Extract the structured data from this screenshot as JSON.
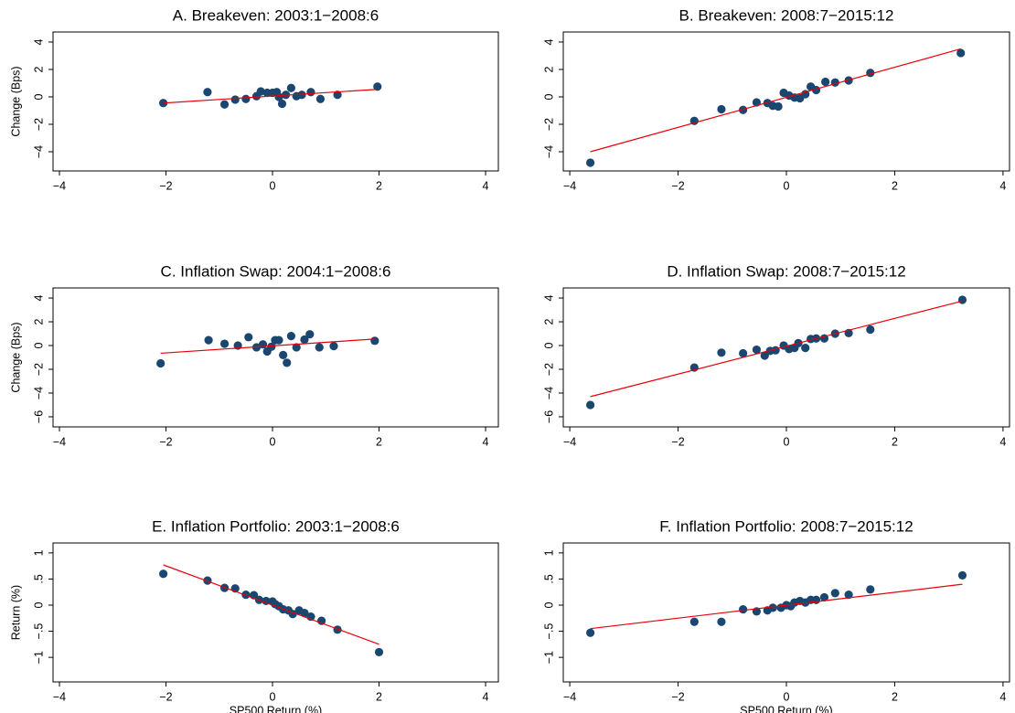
{
  "chart_data": [
    {
      "type": "scatter",
      "title": "A. Breakeven: 2003:1−2008:6",
      "ylabel": "Change (Bps)",
      "xlim": [
        -4.12,
        4.24
      ],
      "ylim": [
        -5.4,
        4.73
      ],
      "xticks": [
        {
          "value": -4,
          "label": "−4"
        },
        {
          "value": -2,
          "label": "−2"
        },
        0,
        2,
        4
      ],
      "yticks": [
        {
          "value": -4,
          "label": "−4"
        },
        {
          "value": -2,
          "label": "−2"
        },
        0,
        2,
        4
      ],
      "series": [
        {
          "type": "scatter",
          "color": "#1a476f",
          "x": [
            -2.05,
            -1.22,
            -0.9,
            -0.7,
            -0.5,
            -0.3,
            -0.22,
            -0.1,
            0,
            0.08,
            0.12,
            0.18,
            0.25,
            0.35,
            0.45,
            0.55,
            0.72,
            0.9,
            1.22,
            1.97
          ],
          "values": [
            -0.45,
            0.35,
            -0.55,
            -0.2,
            -0.15,
            0.05,
            0.4,
            0.3,
            0.3,
            0.35,
            0,
            -0.5,
            0.15,
            0.65,
            0.05,
            0.15,
            0.35,
            -0.15,
            0.15,
            0.75
          ]
        },
        {
          "type": "line",
          "color": "#e8000b",
          "x": [
            -2.05,
            1.97
          ],
          "values": [
            -0.45,
            0.55
          ]
        }
      ]
    },
    {
      "type": "scatter",
      "title": "B. Breakeven: 2008:7−2015:12",
      "xlim": [
        -4.12,
        4.12
      ],
      "ylim": [
        -5.4,
        4.73
      ],
      "xticks": [
        {
          "value": -4,
          "label": "−4"
        },
        {
          "value": -2,
          "label": "−2"
        },
        0,
        2,
        4
      ],
      "yticks": [
        {
          "value": -4,
          "label": "−4"
        },
        {
          "value": -2,
          "label": "−2"
        },
        0,
        2,
        4
      ],
      "series": [
        {
          "type": "scatter",
          "color": "#1a476f",
          "x": [
            -3.62,
            -1.7,
            -1.2,
            -0.8,
            -0.55,
            -0.35,
            -0.25,
            -0.15,
            -0.05,
            0.05,
            0.15,
            0.25,
            0.35,
            0.45,
            0.55,
            0.72,
            0.9,
            1.15,
            1.55,
            3.22
          ],
          "values": [
            -4.8,
            -1.75,
            -0.9,
            -0.95,
            -0.4,
            -0.45,
            -0.65,
            -0.7,
            0.3,
            0.1,
            -0.05,
            -0.1,
            0.2,
            0.75,
            0.5,
            1.1,
            1.05,
            1.2,
            1.75,
            3.2
          ]
        },
        {
          "type": "line",
          "color": "#e8000b",
          "x": [
            -3.62,
            3.22
          ],
          "values": [
            -4.0,
            3.5
          ]
        }
      ]
    },
    {
      "type": "scatter",
      "title": "C. Inflation Swap: 2004:1−2008:6",
      "ylabel": "Change (Bps)",
      "xlim": [
        -4.12,
        4.24
      ],
      "ylim": [
        -6.85,
        4.85
      ],
      "xticks": [
        {
          "value": -4,
          "label": "−4"
        },
        {
          "value": -2,
          "label": "−2"
        },
        0,
        2,
        4
      ],
      "yticks": [
        {
          "value": -6,
          "label": "−6"
        },
        {
          "value": -4,
          "label": "−4"
        },
        {
          "value": -2,
          "label": "−2"
        },
        0,
        2,
        4
      ],
      "series": [
        {
          "type": "scatter",
          "color": "#1a476f",
          "x": [
            -2.1,
            -1.2,
            -0.9,
            -0.65,
            -0.45,
            -0.3,
            -0.18,
            -0.1,
            -0.02,
            0.05,
            0.12,
            0.2,
            0.27,
            0.35,
            0.45,
            0.6,
            0.7,
            0.88,
            1.15,
            1.92
          ],
          "values": [
            -1.5,
            0.45,
            0.15,
            0,
            0.7,
            -0.15,
            0.1,
            -0.5,
            -0.1,
            0.45,
            0.45,
            -0.8,
            -1.45,
            0.8,
            -0.15,
            0.5,
            0.95,
            -0.15,
            -0.05,
            0.4
          ]
        },
        {
          "type": "line",
          "color": "#e8000b",
          "x": [
            -2.1,
            1.92
          ],
          "values": [
            -0.65,
            0.55
          ]
        }
      ]
    },
    {
      "type": "scatter",
      "title": "D. Inflation Swap: 2008:7−2015:12",
      "xlim": [
        -4.12,
        4.12
      ],
      "ylim": [
        -6.85,
        4.85
      ],
      "xticks": [
        {
          "value": -4,
          "label": "−4"
        },
        {
          "value": -2,
          "label": "−2"
        },
        0,
        2,
        4
      ],
      "yticks": [
        {
          "value": -6,
          "label": "−6"
        },
        {
          "value": -4,
          "label": "−4"
        },
        {
          "value": -2,
          "label": "−2"
        },
        0,
        2,
        4
      ],
      "series": [
        {
          "type": "scatter",
          "color": "#1a476f",
          "x": [
            -3.62,
            -1.7,
            -1.2,
            -0.8,
            -0.55,
            -0.4,
            -0.3,
            -0.2,
            -0.05,
            0.05,
            0.15,
            0.22,
            0.35,
            0.45,
            0.55,
            0.7,
            0.9,
            1.15,
            1.55,
            3.25
          ],
          "values": [
            -5.0,
            -1.85,
            -0.6,
            -0.65,
            -0.35,
            -0.85,
            -0.45,
            -0.4,
            0,
            -0.3,
            -0.2,
            0.2,
            -0.2,
            0.55,
            0.6,
            0.6,
            1.0,
            1.05,
            1.35,
            3.85
          ]
        },
        {
          "type": "line",
          "color": "#e8000b",
          "x": [
            -3.62,
            3.25
          ],
          "values": [
            -4.3,
            3.75
          ]
        }
      ]
    },
    {
      "type": "scatter",
      "title": "E. Inflation Portfolio: 2003:1−2008:6",
      "ylabel": "Return (%)",
      "xlabel": "SP500 Return (%)",
      "xlim": [
        -4.12,
        4.24
      ],
      "ylim": [
        -1.47,
        1.19
      ],
      "xticks": [
        {
          "value": -4,
          "label": "−4"
        },
        {
          "value": -2,
          "label": "−2"
        },
        0,
        2,
        4
      ],
      "yticks": [
        {
          "value": -1,
          "label": "−1"
        },
        {
          "value": -0.5,
          "label": "−.5"
        },
        0,
        {
          "value": 0.5,
          "label": ".5"
        },
        1
      ],
      "series": [
        {
          "type": "scatter",
          "color": "#1a476f",
          "x": [
            -2.05,
            -1.22,
            -0.9,
            -0.7,
            -0.5,
            -0.35,
            -0.25,
            -0.12,
            0,
            0.05,
            0.12,
            0.2,
            0.3,
            0.38,
            0.5,
            0.6,
            0.72,
            0.92,
            1.22,
            2.0
          ],
          "values": [
            0.6,
            0.47,
            0.33,
            0.32,
            0.2,
            0.19,
            0.1,
            0.08,
            0.07,
            0.02,
            -0.02,
            -0.08,
            -0.1,
            -0.17,
            -0.1,
            -0.15,
            -0.22,
            -0.3,
            -0.47,
            -0.9
          ]
        },
        {
          "type": "line",
          "color": "#e8000b",
          "x": [
            -2.05,
            2.0
          ],
          "values": [
            0.77,
            -0.75
          ]
        }
      ]
    },
    {
      "type": "scatter",
      "title": "F. Inflation Portfolio: 2008:7−2015:12",
      "xlabel": "SP500 Return (%)",
      "xlim": [
        -4.12,
        4.12
      ],
      "ylim": [
        -1.47,
        1.19
      ],
      "xticks": [
        {
          "value": -4,
          "label": "−4"
        },
        {
          "value": -2,
          "label": "−2"
        },
        0,
        2,
        4
      ],
      "yticks": [
        {
          "value": -1,
          "label": "−1"
        },
        {
          "value": -0.5,
          "label": "−.5"
        },
        0,
        {
          "value": 0.5,
          "label": ".5"
        },
        1
      ],
      "series": [
        {
          "type": "scatter",
          "color": "#1a476f",
          "x": [
            -3.62,
            -1.7,
            -1.2,
            -0.8,
            -0.55,
            -0.35,
            -0.25,
            -0.1,
            0,
            0.08,
            0.15,
            0.25,
            0.35,
            0.45,
            0.55,
            0.7,
            0.9,
            1.15,
            1.55,
            3.25
          ],
          "values": [
            -0.53,
            -0.32,
            -0.32,
            -0.08,
            -0.12,
            -0.1,
            -0.05,
            -0.05,
            0,
            -0.02,
            0.05,
            0.08,
            0.05,
            0.1,
            0.1,
            0.15,
            0.23,
            0.2,
            0.3,
            0.57
          ]
        },
        {
          "type": "line",
          "color": "#e8000b",
          "x": [
            -3.62,
            3.25
          ],
          "values": [
            -0.45,
            0.4
          ]
        }
      ]
    }
  ]
}
